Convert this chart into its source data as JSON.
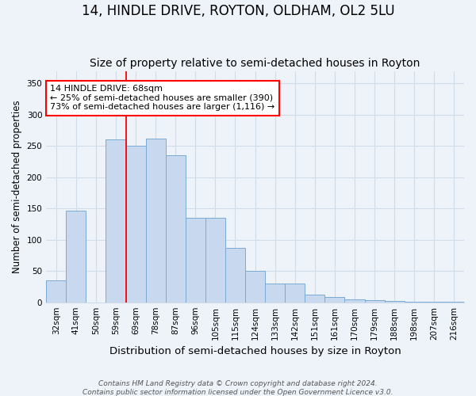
{
  "title": "14, HINDLE DRIVE, ROYTON, OLDHAM, OL2 5LU",
  "subtitle": "Size of property relative to semi-detached houses in Royton",
  "xlabel": "Distribution of semi-detached houses by size in Royton",
  "ylabel": "Number of semi-detached properties",
  "categories": [
    "32sqm",
    "41sqm",
    "50sqm",
    "59sqm",
    "69sqm",
    "78sqm",
    "87sqm",
    "96sqm",
    "105sqm",
    "115sqm",
    "124sqm",
    "133sqm",
    "142sqm",
    "151sqm",
    "161sqm",
    "170sqm",
    "179sqm",
    "188sqm",
    "198sqm",
    "207sqm",
    "216sqm"
  ],
  "values": [
    35,
    147,
    0,
    260,
    250,
    262,
    235,
    135,
    135,
    87,
    50,
    30,
    30,
    12,
    8,
    5,
    4,
    2,
    1,
    1,
    1
  ],
  "bar_color": "#c8d8ee",
  "bar_edge_color": "#7aaad4",
  "ylim": [
    0,
    370
  ],
  "yticks": [
    0,
    50,
    100,
    150,
    200,
    250,
    300,
    350
  ],
  "red_line_index": 4,
  "annotation_text": "14 HINDLE DRIVE: 68sqm\n← 25% of semi-detached houses are smaller (390)\n73% of semi-detached houses are larger (1,116) →",
  "annotation_box_color": "white",
  "annotation_box_edge_color": "red",
  "footer_text": "Contains HM Land Registry data © Crown copyright and database right 2024.\nContains public sector information licensed under the Open Government Licence v3.0.",
  "background_color": "#eef3fa",
  "grid_color": "#d0dce8",
  "title_fontsize": 12,
  "subtitle_fontsize": 10,
  "tick_fontsize": 7.5,
  "ylabel_fontsize": 8.5,
  "xlabel_fontsize": 9.5,
  "annotation_fontsize": 8
}
